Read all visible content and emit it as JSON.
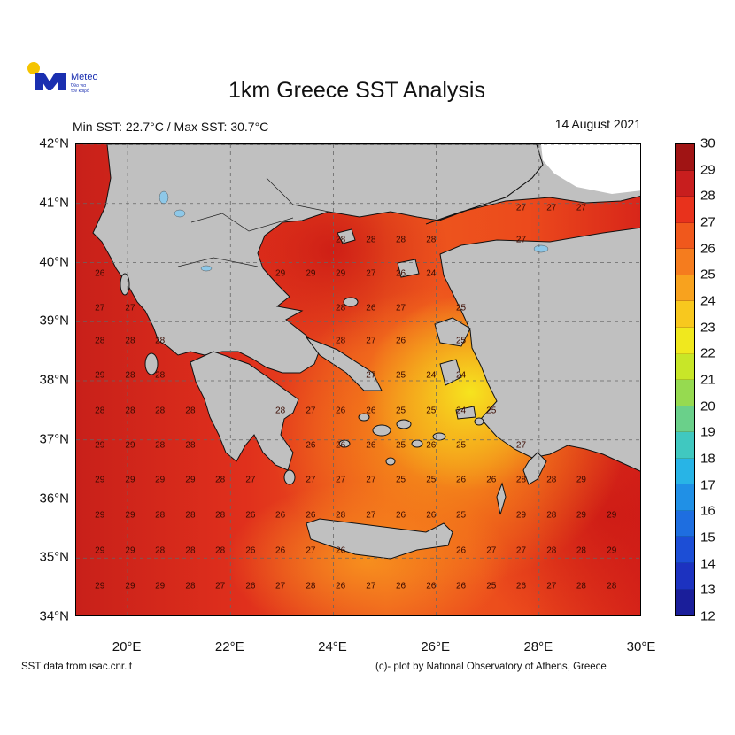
{
  "logo": {
    "brand": "Meteo",
    "tagline_1": "Όλο για",
    "tagline_2": "τον καιρό",
    "colors": {
      "sun": "#f5c400",
      "mark": "#1a2fb0"
    }
  },
  "title": "1km Greece SST Analysis",
  "subtitle": "Min SST: 22.7°C / Max SST: 30.7°C",
  "date": "14 August 2021",
  "footer_left": "SST data from isac.cnr.it",
  "footer_right": "(c)- plot by National Observatory of Athens, Greece",
  "map": {
    "lon_range": [
      19,
      30
    ],
    "lat_range": [
      34,
      42
    ],
    "lat_ticks": [
      {
        "v": 42,
        "t": "42°N"
      },
      {
        "v": 41,
        "t": "41°N"
      },
      {
        "v": 40,
        "t": "40°N"
      },
      {
        "v": 39,
        "t": "39°N"
      },
      {
        "v": 38,
        "t": "38°N"
      },
      {
        "v": 37,
        "t": "37°N"
      },
      {
        "v": 36,
        "t": "36°N"
      },
      {
        "v": 35,
        "t": "35°N"
      },
      {
        "v": 34,
        "t": "34°N"
      }
    ],
    "lon_ticks": [
      {
        "v": 20,
        "t": "20°E"
      },
      {
        "v": 22,
        "t": "22°E"
      },
      {
        "v": 24,
        "t": "24°E"
      },
      {
        "v": 26,
        "t": "26°E"
      },
      {
        "v": 28,
        "t": "28°E"
      },
      {
        "v": 30,
        "t": "30°E"
      }
    ],
    "colors": {
      "land": "#c0c0c0",
      "nodata": "#ffffff",
      "lakes": "#8ec8e8"
    }
  },
  "label_lons": [
    19.46,
    20.05,
    20.63,
    21.22,
    21.8,
    22.39,
    22.97,
    23.56,
    24.14,
    24.73,
    25.31,
    25.9,
    26.48,
    27.07,
    27.65,
    28.24,
    28.82,
    29.41
  ],
  "label_rows": [
    {
      "lat": 40.92,
      "v": [
        null,
        null,
        null,
        null,
        null,
        null,
        null,
        null,
        null,
        null,
        null,
        null,
        null,
        null,
        27,
        27,
        27,
        null
      ]
    },
    {
      "lat": 40.38,
      "v": [
        null,
        null,
        null,
        null,
        null,
        null,
        null,
        null,
        28,
        28,
        28,
        28,
        null,
        null,
        27,
        null,
        null,
        null
      ]
    },
    {
      "lat": 39.81,
      "v": [
        26,
        null,
        null,
        null,
        null,
        null,
        29,
        29,
        29,
        27,
        26,
        24,
        null,
        null,
        null,
        null,
        null,
        null
      ]
    },
    {
      "lat": 39.23,
      "v": [
        27,
        27,
        null,
        null,
        null,
        null,
        null,
        null,
        28,
        26,
        27,
        null,
        25,
        null,
        null,
        null,
        null,
        null
      ]
    },
    {
      "lat": 38.67,
      "v": [
        28,
        28,
        28,
        null,
        null,
        null,
        null,
        null,
        28,
        27,
        26,
        null,
        25,
        null,
        null,
        null,
        null,
        null
      ]
    },
    {
      "lat": 38.09,
      "v": [
        29,
        28,
        28,
        null,
        null,
        null,
        null,
        null,
        null,
        27,
        25,
        24,
        24,
        null,
        null,
        null,
        null,
        null
      ]
    },
    {
      "lat": 37.49,
      "v": [
        28,
        28,
        28,
        28,
        null,
        null,
        28,
        27,
        26,
        26,
        25,
        25,
        24,
        25,
        null,
        null,
        null,
        null
      ]
    },
    {
      "lat": 36.91,
      "v": [
        29,
        29,
        28,
        28,
        null,
        null,
        null,
        26,
        26,
        26,
        25,
        26,
        25,
        null,
        27,
        null,
        null,
        null
      ]
    },
    {
      "lat": 36.32,
      "v": [
        29,
        29,
        29,
        29,
        28,
        27,
        null,
        27,
        27,
        27,
        25,
        25,
        26,
        26,
        28,
        28,
        29,
        null
      ]
    },
    {
      "lat": 35.72,
      "v": [
        29,
        29,
        28,
        28,
        28,
        26,
        26,
        26,
        28,
        27,
        26,
        26,
        25,
        null,
        29,
        28,
        29,
        29
      ]
    },
    {
      "lat": 35.12,
      "v": [
        29,
        29,
        28,
        28,
        28,
        26,
        26,
        27,
        26,
        null,
        null,
        null,
        26,
        27,
        27,
        28,
        28,
        29
      ]
    },
    {
      "lat": 34.52,
      "v": [
        29,
        29,
        29,
        28,
        27,
        26,
        27,
        28,
        26,
        27,
        26,
        26,
        26,
        25,
        26,
        27,
        28,
        28
      ]
    }
  ],
  "colorbar": {
    "ticks": [
      "30",
      "29",
      "28",
      "27",
      "26",
      "25",
      "24",
      "23",
      "22",
      "21",
      "20",
      "19",
      "18",
      "17",
      "16",
      "15",
      "14",
      "13",
      "12"
    ],
    "colors": [
      "#a01414",
      "#c81e1e",
      "#e8321c",
      "#f0581c",
      "#f57c1e",
      "#f8a21e",
      "#f8c81e",
      "#f0e81e",
      "#c8e628",
      "#96da50",
      "#6ad08a",
      "#40c8c0",
      "#28b4e6",
      "#2090e6",
      "#1e6ee0",
      "#1c4ed6",
      "#1c32c0",
      "#1a1e9a"
    ],
    "unit": "°C"
  }
}
